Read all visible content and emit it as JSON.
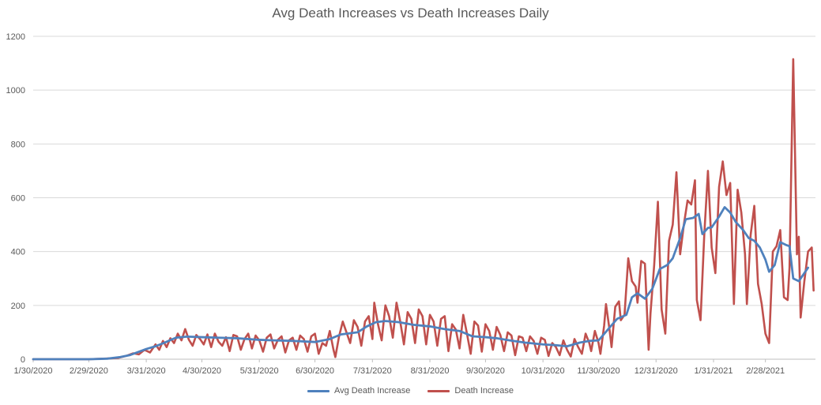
{
  "chart_data": {
    "type": "line",
    "title": "Avg Death Increases vs Death Increases Daily",
    "xlabel": "",
    "ylabel": "",
    "ylim": [
      0,
      1200
    ],
    "y_ticks": [
      0,
      200,
      400,
      600,
      800,
      1000,
      1200
    ],
    "x_start": "1/30/2020",
    "x_ticks": [
      "1/30/2020",
      "2/29/2020",
      "3/31/2020",
      "4/30/2020",
      "5/31/2020",
      "6/30/2020",
      "7/31/2020",
      "8/31/2020",
      "9/30/2020",
      "10/31/2020",
      "11/30/2020",
      "12/31/2020",
      "1/31/2021",
      "2/28/2021"
    ],
    "x_tick_days": [
      0,
      30,
      61,
      91,
      122,
      152,
      183,
      214,
      244,
      275,
      305,
      336,
      367,
      395
    ],
    "grid": true,
    "legend_position": "bottom",
    "series": [
      {
        "name": "Avg Death Increase",
        "color": "#4F81BD",
        "points": [
          [
            0,
            0
          ],
          [
            30,
            0
          ],
          [
            40,
            2
          ],
          [
            47,
            8
          ],
          [
            52,
            15
          ],
          [
            56,
            25
          ],
          [
            61,
            38
          ],
          [
            66,
            48
          ],
          [
            71,
            62
          ],
          [
            77,
            80
          ],
          [
            83,
            84
          ],
          [
            91,
            82
          ],
          [
            100,
            80
          ],
          [
            110,
            78
          ],
          [
            122,
            72
          ],
          [
            130,
            70
          ],
          [
            140,
            68
          ],
          [
            152,
            64
          ],
          [
            160,
            75
          ],
          [
            166,
            92
          ],
          [
            175,
            100
          ],
          [
            180,
            122
          ],
          [
            185,
            138
          ],
          [
            190,
            142
          ],
          [
            197,
            138
          ],
          [
            205,
            128
          ],
          [
            214,
            122
          ],
          [
            222,
            112
          ],
          [
            230,
            105
          ],
          [
            237,
            85
          ],
          [
            244,
            82
          ],
          [
            250,
            78
          ],
          [
            257,
            70
          ],
          [
            265,
            62
          ],
          [
            275,
            55
          ],
          [
            282,
            52
          ],
          [
            288,
            48
          ],
          [
            295,
            62
          ],
          [
            300,
            68
          ],
          [
            305,
            70
          ],
          [
            310,
            110
          ],
          [
            315,
            150
          ],
          [
            320,
            165
          ],
          [
            323,
            230
          ],
          [
            326,
            245
          ],
          [
            330,
            225
          ],
          [
            334,
            262
          ],
          [
            338,
            335
          ],
          [
            342,
            350
          ],
          [
            345,
            375
          ],
          [
            349,
            450
          ],
          [
            352,
            520
          ],
          [
            356,
            525
          ],
          [
            359,
            540
          ],
          [
            361,
            465
          ],
          [
            364,
            488
          ],
          [
            366,
            490
          ],
          [
            370,
            530
          ],
          [
            373,
            565
          ],
          [
            376,
            545
          ],
          [
            379,
            510
          ],
          [
            383,
            480
          ],
          [
            386,
            450
          ],
          [
            389,
            440
          ],
          [
            392,
            415
          ],
          [
            395,
            370
          ],
          [
            397,
            325
          ],
          [
            400,
            350
          ],
          [
            403,
            435
          ],
          [
            406,
            425
          ],
          [
            408,
            420
          ],
          [
            410,
            300
          ],
          [
            413,
            290
          ],
          [
            416,
            320
          ],
          [
            418,
            340
          ]
        ]
      },
      {
        "name": "Death Increase",
        "color": "#C0504D",
        "points": [
          [
            0,
            0
          ],
          [
            30,
            0
          ],
          [
            42,
            3
          ],
          [
            46,
            5
          ],
          [
            50,
            12
          ],
          [
            54,
            22
          ],
          [
            57,
            18
          ],
          [
            60,
            35
          ],
          [
            63,
            25
          ],
          [
            66,
            55
          ],
          [
            68,
            35
          ],
          [
            70,
            68
          ],
          [
            72,
            45
          ],
          [
            74,
            78
          ],
          [
            76,
            60
          ],
          [
            78,
            95
          ],
          [
            80,
            70
          ],
          [
            82,
            112
          ],
          [
            84,
            72
          ],
          [
            86,
            50
          ],
          [
            88,
            90
          ],
          [
            90,
            75
          ],
          [
            92,
            55
          ],
          [
            94,
            92
          ],
          [
            96,
            45
          ],
          [
            98,
            95
          ],
          [
            100,
            65
          ],
          [
            102,
            50
          ],
          [
            104,
            82
          ],
          [
            106,
            30
          ],
          [
            108,
            90
          ],
          [
            110,
            85
          ],
          [
            112,
            35
          ],
          [
            114,
            75
          ],
          [
            116,
            95
          ],
          [
            118,
            40
          ],
          [
            120,
            88
          ],
          [
            122,
            70
          ],
          [
            124,
            28
          ],
          [
            126,
            80
          ],
          [
            128,
            92
          ],
          [
            130,
            40
          ],
          [
            132,
            72
          ],
          [
            134,
            85
          ],
          [
            136,
            25
          ],
          [
            138,
            70
          ],
          [
            140,
            80
          ],
          [
            142,
            35
          ],
          [
            144,
            88
          ],
          [
            146,
            75
          ],
          [
            148,
            28
          ],
          [
            150,
            85
          ],
          [
            152,
            95
          ],
          [
            154,
            20
          ],
          [
            156,
            60
          ],
          [
            158,
            50
          ],
          [
            160,
            105
          ],
          [
            162,
            35
          ],
          [
            163,
            8
          ],
          [
            165,
            85
          ],
          [
            167,
            140
          ],
          [
            169,
            100
          ],
          [
            171,
            60
          ],
          [
            173,
            145
          ],
          [
            175,
            120
          ],
          [
            177,
            50
          ],
          [
            179,
            140
          ],
          [
            181,
            160
          ],
          [
            183,
            75
          ],
          [
            184,
            210
          ],
          [
            186,
            130
          ],
          [
            188,
            70
          ],
          [
            190,
            200
          ],
          [
            192,
            160
          ],
          [
            194,
            80
          ],
          [
            196,
            210
          ],
          [
            198,
            140
          ],
          [
            200,
            55
          ],
          [
            202,
            175
          ],
          [
            204,
            150
          ],
          [
            206,
            60
          ],
          [
            208,
            185
          ],
          [
            210,
            160
          ],
          [
            212,
            55
          ],
          [
            214,
            165
          ],
          [
            216,
            140
          ],
          [
            218,
            50
          ],
          [
            220,
            150
          ],
          [
            222,
            160
          ],
          [
            224,
            30
          ],
          [
            226,
            130
          ],
          [
            228,
            110
          ],
          [
            230,
            40
          ],
          [
            232,
            165
          ],
          [
            234,
            95
          ],
          [
            236,
            20
          ],
          [
            238,
            140
          ],
          [
            240,
            125
          ],
          [
            242,
            28
          ],
          [
            244,
            130
          ],
          [
            246,
            105
          ],
          [
            248,
            35
          ],
          [
            250,
            120
          ],
          [
            252,
            90
          ],
          [
            254,
            30
          ],
          [
            256,
            100
          ],
          [
            258,
            88
          ],
          [
            260,
            15
          ],
          [
            262,
            85
          ],
          [
            264,
            80
          ],
          [
            266,
            30
          ],
          [
            268,
            85
          ],
          [
            270,
            68
          ],
          [
            272,
            20
          ],
          [
            274,
            80
          ],
          [
            276,
            72
          ],
          [
            278,
            12
          ],
          [
            280,
            60
          ],
          [
            282,
            45
          ],
          [
            284,
            15
          ],
          [
            286,
            70
          ],
          [
            288,
            35
          ],
          [
            290,
            10
          ],
          [
            292,
            75
          ],
          [
            294,
            45
          ],
          [
            296,
            20
          ],
          [
            298,
            95
          ],
          [
            300,
            60
          ],
          [
            301,
            30
          ],
          [
            303,
            105
          ],
          [
            305,
            60
          ],
          [
            306,
            20
          ],
          [
            308,
            125
          ],
          [
            309,
            205
          ],
          [
            311,
            105
          ],
          [
            312,
            45
          ],
          [
            314,
            195
          ],
          [
            316,
            215
          ],
          [
            317,
            145
          ],
          [
            319,
            165
          ],
          [
            321,
            375
          ],
          [
            323,
            290
          ],
          [
            325,
            270
          ],
          [
            326,
            210
          ],
          [
            328,
            365
          ],
          [
            330,
            355
          ],
          [
            332,
            35
          ],
          [
            333,
            170
          ],
          [
            335,
            350
          ],
          [
            337,
            585
          ],
          [
            339,
            185
          ],
          [
            341,
            95
          ],
          [
            343,
            440
          ],
          [
            345,
            500
          ],
          [
            347,
            695
          ],
          [
            349,
            390
          ],
          [
            351,
            500
          ],
          [
            353,
            590
          ],
          [
            355,
            575
          ],
          [
            357,
            665
          ],
          [
            358,
            220
          ],
          [
            360,
            145
          ],
          [
            362,
            460
          ],
          [
            364,
            700
          ],
          [
            366,
            415
          ],
          [
            368,
            320
          ],
          [
            370,
            640
          ],
          [
            372,
            735
          ],
          [
            374,
            610
          ],
          [
            376,
            655
          ],
          [
            378,
            205
          ],
          [
            380,
            630
          ],
          [
            382,
            545
          ],
          [
            384,
            390
          ],
          [
            385,
            205
          ],
          [
            387,
            460
          ],
          [
            389,
            570
          ],
          [
            391,
            280
          ],
          [
            393,
            205
          ],
          [
            395,
            95
          ],
          [
            397,
            60
          ],
          [
            399,
            400
          ],
          [
            401,
            420
          ],
          [
            403,
            480
          ],
          [
            405,
            230
          ],
          [
            407,
            220
          ],
          [
            408,
            340
          ],
          [
            410,
            1115
          ],
          [
            412,
            390
          ],
          [
            413,
            455
          ],
          [
            414,
            155
          ],
          [
            416,
            290
          ],
          [
            418,
            400
          ],
          [
            420,
            415
          ],
          [
            421,
            255
          ]
        ]
      }
    ]
  }
}
